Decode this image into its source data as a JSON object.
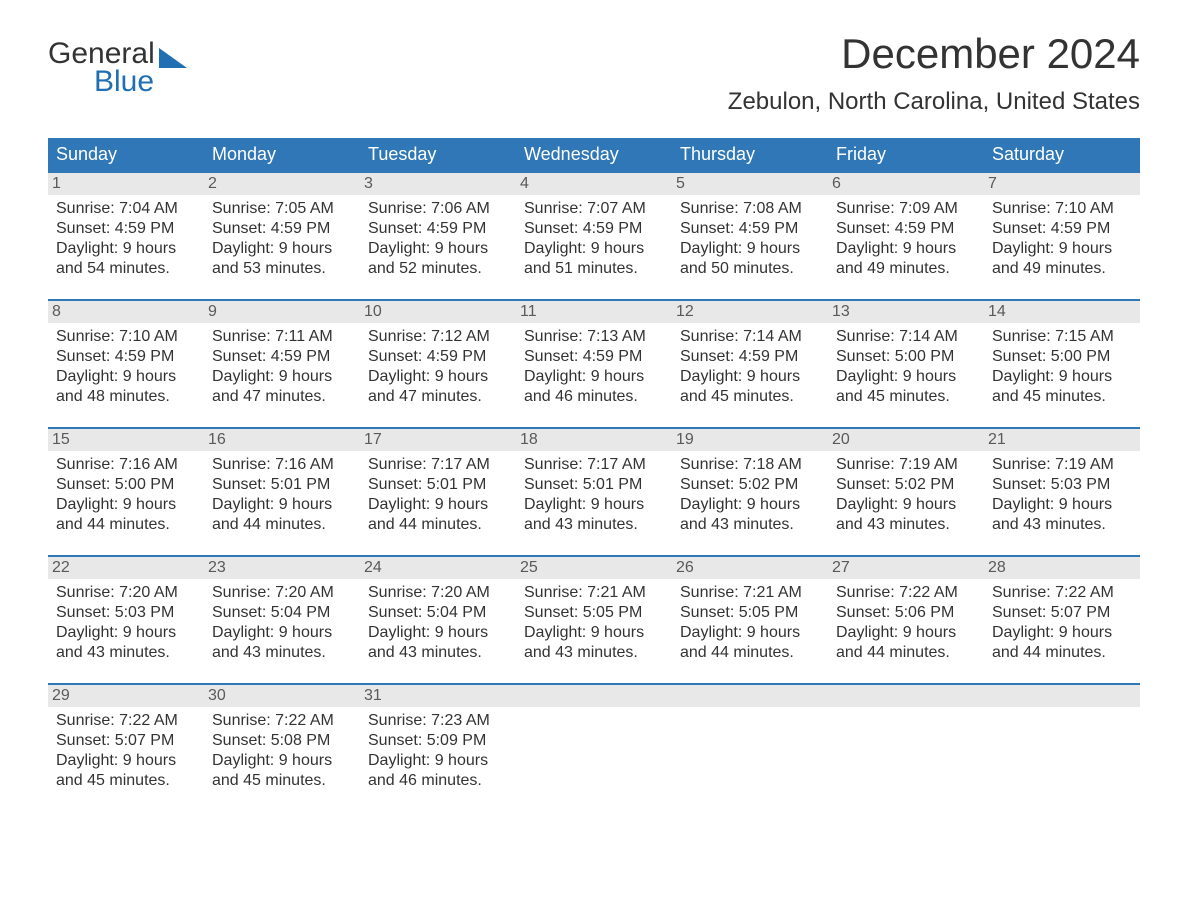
{
  "brand": {
    "word1": "General",
    "word2": "Blue"
  },
  "title": "December 2024",
  "location": "Zebulon, North Carolina, United States",
  "colors": {
    "header_bg": "#2f77b6",
    "header_text": "#ffffff",
    "row_border": "#2f77b6",
    "daynum_bg": "#e8e8e8",
    "daynum_text": "#5a5a5a",
    "body_text": "#333333",
    "brand_blue": "#1f6fb2",
    "page_bg": "#ffffff"
  },
  "typography": {
    "title_fontsize": 42,
    "location_fontsize": 24,
    "weekday_fontsize": 18,
    "cell_fontsize": 16,
    "logo_fontsize": 30
  },
  "layout": {
    "columns": 7,
    "first_weekday": "Sunday",
    "start_offset": 0,
    "total_days": 31
  },
  "weekdays": [
    "Sunday",
    "Monday",
    "Tuesday",
    "Wednesday",
    "Thursday",
    "Friday",
    "Saturday"
  ],
  "days": [
    {
      "n": "1",
      "sunrise": "Sunrise: 7:04 AM",
      "sunset": "Sunset: 4:59 PM",
      "d1": "Daylight: 9 hours",
      "d2": "and 54 minutes."
    },
    {
      "n": "2",
      "sunrise": "Sunrise: 7:05 AM",
      "sunset": "Sunset: 4:59 PM",
      "d1": "Daylight: 9 hours",
      "d2": "and 53 minutes."
    },
    {
      "n": "3",
      "sunrise": "Sunrise: 7:06 AM",
      "sunset": "Sunset: 4:59 PM",
      "d1": "Daylight: 9 hours",
      "d2": "and 52 minutes."
    },
    {
      "n": "4",
      "sunrise": "Sunrise: 7:07 AM",
      "sunset": "Sunset: 4:59 PM",
      "d1": "Daylight: 9 hours",
      "d2": "and 51 minutes."
    },
    {
      "n": "5",
      "sunrise": "Sunrise: 7:08 AM",
      "sunset": "Sunset: 4:59 PM",
      "d1": "Daylight: 9 hours",
      "d2": "and 50 minutes."
    },
    {
      "n": "6",
      "sunrise": "Sunrise: 7:09 AM",
      "sunset": "Sunset: 4:59 PM",
      "d1": "Daylight: 9 hours",
      "d2": "and 49 minutes."
    },
    {
      "n": "7",
      "sunrise": "Sunrise: 7:10 AM",
      "sunset": "Sunset: 4:59 PM",
      "d1": "Daylight: 9 hours",
      "d2": "and 49 minutes."
    },
    {
      "n": "8",
      "sunrise": "Sunrise: 7:10 AM",
      "sunset": "Sunset: 4:59 PM",
      "d1": "Daylight: 9 hours",
      "d2": "and 48 minutes."
    },
    {
      "n": "9",
      "sunrise": "Sunrise: 7:11 AM",
      "sunset": "Sunset: 4:59 PM",
      "d1": "Daylight: 9 hours",
      "d2": "and 47 minutes."
    },
    {
      "n": "10",
      "sunrise": "Sunrise: 7:12 AM",
      "sunset": "Sunset: 4:59 PM",
      "d1": "Daylight: 9 hours",
      "d2": "and 47 minutes."
    },
    {
      "n": "11",
      "sunrise": "Sunrise: 7:13 AM",
      "sunset": "Sunset: 4:59 PM",
      "d1": "Daylight: 9 hours",
      "d2": "and 46 minutes."
    },
    {
      "n": "12",
      "sunrise": "Sunrise: 7:14 AM",
      "sunset": "Sunset: 4:59 PM",
      "d1": "Daylight: 9 hours",
      "d2": "and 45 minutes."
    },
    {
      "n": "13",
      "sunrise": "Sunrise: 7:14 AM",
      "sunset": "Sunset: 5:00 PM",
      "d1": "Daylight: 9 hours",
      "d2": "and 45 minutes."
    },
    {
      "n": "14",
      "sunrise": "Sunrise: 7:15 AM",
      "sunset": "Sunset: 5:00 PM",
      "d1": "Daylight: 9 hours",
      "d2": "and 45 minutes."
    },
    {
      "n": "15",
      "sunrise": "Sunrise: 7:16 AM",
      "sunset": "Sunset: 5:00 PM",
      "d1": "Daylight: 9 hours",
      "d2": "and 44 minutes."
    },
    {
      "n": "16",
      "sunrise": "Sunrise: 7:16 AM",
      "sunset": "Sunset: 5:01 PM",
      "d1": "Daylight: 9 hours",
      "d2": "and 44 minutes."
    },
    {
      "n": "17",
      "sunrise": "Sunrise: 7:17 AM",
      "sunset": "Sunset: 5:01 PM",
      "d1": "Daylight: 9 hours",
      "d2": "and 44 minutes."
    },
    {
      "n": "18",
      "sunrise": "Sunrise: 7:17 AM",
      "sunset": "Sunset: 5:01 PM",
      "d1": "Daylight: 9 hours",
      "d2": "and 43 minutes."
    },
    {
      "n": "19",
      "sunrise": "Sunrise: 7:18 AM",
      "sunset": "Sunset: 5:02 PM",
      "d1": "Daylight: 9 hours",
      "d2": "and 43 minutes."
    },
    {
      "n": "20",
      "sunrise": "Sunrise: 7:19 AM",
      "sunset": "Sunset: 5:02 PM",
      "d1": "Daylight: 9 hours",
      "d2": "and 43 minutes."
    },
    {
      "n": "21",
      "sunrise": "Sunrise: 7:19 AM",
      "sunset": "Sunset: 5:03 PM",
      "d1": "Daylight: 9 hours",
      "d2": "and 43 minutes."
    },
    {
      "n": "22",
      "sunrise": "Sunrise: 7:20 AM",
      "sunset": "Sunset: 5:03 PM",
      "d1": "Daylight: 9 hours",
      "d2": "and 43 minutes."
    },
    {
      "n": "23",
      "sunrise": "Sunrise: 7:20 AM",
      "sunset": "Sunset: 5:04 PM",
      "d1": "Daylight: 9 hours",
      "d2": "and 43 minutes."
    },
    {
      "n": "24",
      "sunrise": "Sunrise: 7:20 AM",
      "sunset": "Sunset: 5:04 PM",
      "d1": "Daylight: 9 hours",
      "d2": "and 43 minutes."
    },
    {
      "n": "25",
      "sunrise": "Sunrise: 7:21 AM",
      "sunset": "Sunset: 5:05 PM",
      "d1": "Daylight: 9 hours",
      "d2": "and 43 minutes."
    },
    {
      "n": "26",
      "sunrise": "Sunrise: 7:21 AM",
      "sunset": "Sunset: 5:05 PM",
      "d1": "Daylight: 9 hours",
      "d2": "and 44 minutes."
    },
    {
      "n": "27",
      "sunrise": "Sunrise: 7:22 AM",
      "sunset": "Sunset: 5:06 PM",
      "d1": "Daylight: 9 hours",
      "d2": "and 44 minutes."
    },
    {
      "n": "28",
      "sunrise": "Sunrise: 7:22 AM",
      "sunset": "Sunset: 5:07 PM",
      "d1": "Daylight: 9 hours",
      "d2": "and 44 minutes."
    },
    {
      "n": "29",
      "sunrise": "Sunrise: 7:22 AM",
      "sunset": "Sunset: 5:07 PM",
      "d1": "Daylight: 9 hours",
      "d2": "and 45 minutes."
    },
    {
      "n": "30",
      "sunrise": "Sunrise: 7:22 AM",
      "sunset": "Sunset: 5:08 PM",
      "d1": "Daylight: 9 hours",
      "d2": "and 45 minutes."
    },
    {
      "n": "31",
      "sunrise": "Sunrise: 7:23 AM",
      "sunset": "Sunset: 5:09 PM",
      "d1": "Daylight: 9 hours",
      "d2": "and 46 minutes."
    }
  ]
}
